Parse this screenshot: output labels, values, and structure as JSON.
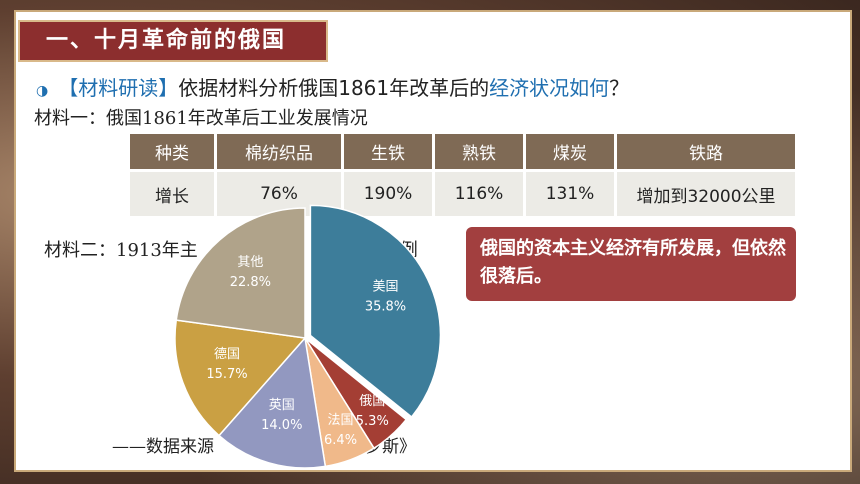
{
  "header": {
    "title": "一、十月革命前的俄国"
  },
  "question": {
    "bullet": "◑",
    "prefix": "【材料研读】",
    "text": "依据材料分析俄国1861年改革后的",
    "highlight": "经济状况如何",
    "suffix": "？"
  },
  "material1": {
    "title": "材料一：俄国1861年改革后工业发展情况",
    "headers": [
      "种类",
      "棉纺织品",
      "生铁",
      "熟铁",
      "煤炭",
      "铁路"
    ],
    "row": [
      "增长",
      "76%",
      "190%",
      "116%",
      "131%",
      "增加到32000公里"
    ]
  },
  "material2": {
    "title_left": "材料二：1913年主",
    "title_right": "占比例"
  },
  "source": {
    "left": "——数据来源",
    "right": "《罗斯》"
  },
  "conclusion": {
    "text": "俄国的资本主义经济有所发展，但依然很落后。"
  },
  "colors": {
    "banner": "#8c2e2e",
    "conclusion": "#a23f3f",
    "table_header": "#7f6a55",
    "accent": "#1f6fb0"
  },
  "chart_data": {
    "type": "pie",
    "slices": [
      {
        "label": "美国",
        "value": 35.8,
        "value_label": "35.8%",
        "color": "#3d7d9a"
      },
      {
        "label": "俄国",
        "value": 5.3,
        "value_label": "5.3%",
        "color": "#a43e34"
      },
      {
        "label": "法国",
        "value": 6.4,
        "value_label": "6.4%",
        "color": "#f0b98a"
      },
      {
        "label": "英国",
        "value": 14.0,
        "value_label": "14.0%",
        "color": "#9298c0"
      },
      {
        "label": "德国",
        "value": 15.7,
        "value_label": "15.7%",
        "color": "#caa043"
      },
      {
        "label": "其他",
        "value": 22.8,
        "value_label": "22.8%",
        "color": "#b0a38a"
      }
    ]
  }
}
